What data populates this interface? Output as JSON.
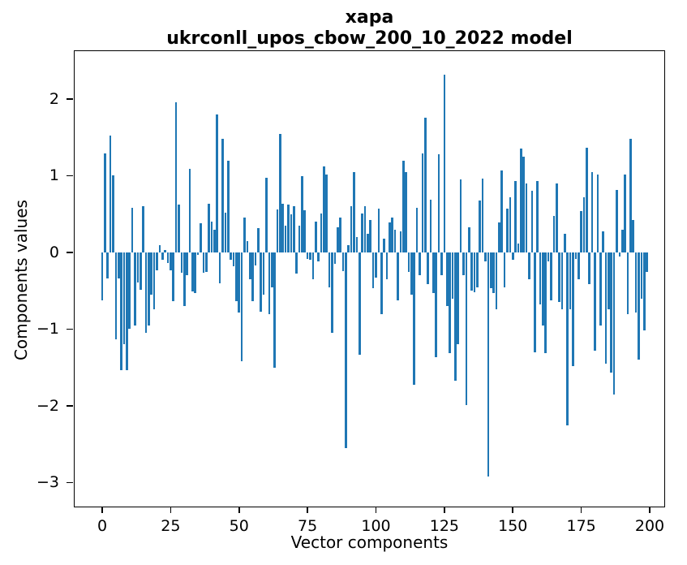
{
  "chart_data": {
    "type": "bar",
    "title": "хара",
    "subtitle": "ukrconll_upos_cbow_200_10_2022 model",
    "xlabel": "Vector components",
    "ylabel": "Components values",
    "bar_color": "#1f77b4",
    "text_color": "#000000",
    "background_color": "#ffffff",
    "legend": "none",
    "grid": "off",
    "n_components": 200,
    "xticks": [
      0,
      25,
      50,
      75,
      100,
      125,
      150,
      175,
      200
    ],
    "yticks": [
      2,
      1,
      0,
      -1,
      -2,
      -3
    ],
    "xlim": [
      -10.1,
      206.1
    ],
    "ylim": [
      -3.33,
      2.62
    ],
    "values": [
      -0.62,
      1.29,
      -0.34,
      1.52,
      1.01,
      -1.13,
      -0.34,
      -1.53,
      -1.2,
      -1.53,
      -0.99,
      0.58,
      -0.95,
      -0.39,
      -0.49,
      0.6,
      -1.05,
      -0.95,
      -0.55,
      -0.74,
      -0.23,
      0.09,
      -0.09,
      0.03,
      -0.14,
      -0.23,
      -0.63,
      1.96,
      0.62,
      -0.26,
      -0.7,
      -0.3,
      1.09,
      -0.51,
      -0.53,
      -0.03,
      0.38,
      -0.26,
      -0.25,
      0.63,
      0.4,
      0.3,
      1.8,
      -0.4,
      1.48,
      0.52,
      1.2,
      -0.1,
      -0.18,
      -0.64,
      -0.78,
      -1.42,
      0.46,
      0.15,
      -0.35,
      -0.64,
      -0.17,
      0.32,
      -0.77,
      -0.55,
      0.97,
      -0.8,
      -0.45,
      -1.5,
      0.56,
      1.55,
      0.63,
      0.35,
      0.62,
      0.5,
      0.6,
      -0.28,
      0.35,
      1.0,
      0.55,
      -0.08,
      -0.1,
      -0.35,
      0.4,
      -0.12,
      0.51,
      1.12,
      1.02,
      -0.45,
      -1.05,
      -0.15,
      0.33,
      0.45,
      -0.24,
      -2.55,
      0.1,
      0.6,
      1.05,
      0.2,
      -1.33,
      0.51,
      0.6,
      0.24,
      0.42,
      -0.47,
      -0.33,
      0.57,
      -0.8,
      0.18,
      -0.35,
      0.39,
      0.45,
      0.3,
      -0.62,
      0.27,
      1.2,
      1.05,
      -0.25,
      -0.55,
      -1.72,
      0.58,
      -0.3,
      1.29,
      1.76,
      -0.41,
      0.69,
      -0.53,
      -1.37,
      1.28,
      -0.3,
      2.32,
      -0.7,
      -1.31,
      -0.6,
      -1.67,
      -1.2,
      0.95,
      -0.3,
      -1.99,
      0.33,
      -0.5,
      -0.52,
      -0.45,
      0.68,
      0.96,
      -0.12,
      -2.92,
      -0.47,
      -0.53,
      -0.74,
      0.39,
      1.07,
      -0.45,
      0.57,
      0.72,
      -0.1,
      0.93,
      0.12,
      1.35,
      1.25,
      0.9,
      -0.35,
      0.8,
      -1.3,
      0.93,
      -0.68,
      -0.95,
      -1.31,
      -0.12,
      -0.62,
      0.48,
      0.9,
      -0.65,
      -0.74,
      0.24,
      -2.25,
      -0.74,
      -1.48,
      -0.08,
      -0.35,
      0.54,
      0.72,
      1.36,
      -0.41,
      1.05,
      -1.28,
      1.02,
      -0.95,
      0.27,
      -1.45,
      -0.74,
      -1.57,
      -1.85,
      0.82,
      -0.05,
      0.3,
      1.02,
      -0.8,
      1.48,
      0.42,
      -0.78,
      -1.4,
      -0.6,
      -1.02,
      -0.25
    ]
  }
}
